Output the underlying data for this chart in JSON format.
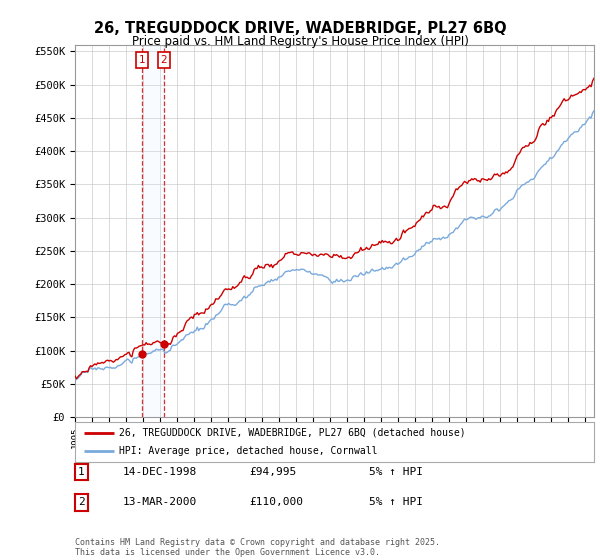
{
  "title": "26, TREGUDDOCK DRIVE, WADEBRIDGE, PL27 6BQ",
  "subtitle": "Price paid vs. HM Land Registry's House Price Index (HPI)",
  "x_start_year": 1995,
  "x_end_year": 2025,
  "y_min": 0,
  "y_max": 560000,
  "y_ticks": [
    0,
    50000,
    100000,
    150000,
    200000,
    250000,
    300000,
    350000,
    400000,
    450000,
    500000,
    550000
  ],
  "y_tick_labels": [
    "£0",
    "£50K",
    "£100K",
    "£150K",
    "£200K",
    "£250K",
    "£300K",
    "£350K",
    "£400K",
    "£450K",
    "£500K",
    "£550K"
  ],
  "hpi_color": "#7aaadd",
  "price_color": "#cc0000",
  "shading_color": "#ddeeff",
  "transaction1_date": 1998.96,
  "transaction1_label": "1",
  "transaction1_price": 94995,
  "transaction1_display": "14-DEC-1998",
  "transaction1_price_display": "£94,995",
  "transaction1_hpi_info": "5% ↑ HPI",
  "transaction2_date": 2000.21,
  "transaction2_label": "2",
  "transaction2_price": 110000,
  "transaction2_display": "13-MAR-2000",
  "transaction2_price_display": "£110,000",
  "transaction2_hpi_info": "5% ↑ HPI",
  "legend_line1": "26, TREGUDDOCK DRIVE, WADEBRIDGE, PL27 6BQ (detached house)",
  "legend_line2": "HPI: Average price, detached house, Cornwall",
  "footer": "Contains HM Land Registry data © Crown copyright and database right 2025.\nThis data is licensed under the Open Government Licence v3.0.",
  "background_color": "#ffffff",
  "grid_color": "#cccccc"
}
